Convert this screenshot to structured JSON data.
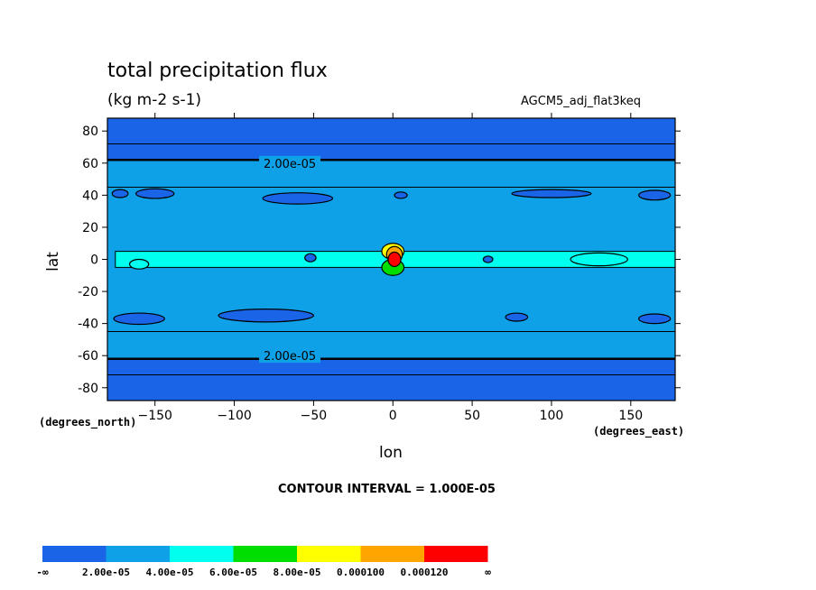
{
  "chart_data": {
    "type": "heatmap",
    "title": "total precipitation flux",
    "units": "(kg m-2 s-1)",
    "dataset": "AGCM5_adj_flat3keq",
    "xlabel": "lon",
    "ylabel": "lat",
    "x_units": "(degrees_east)",
    "y_units": "(degrees_north)",
    "xlim": [
      -180,
      178
    ],
    "ylim": [
      -88,
      88
    ],
    "x_ticks": [
      -150,
      -100,
      -50,
      0,
      50,
      100,
      150
    ],
    "y_ticks": [
      80,
      60,
      40,
      20,
      0,
      -20,
      -40,
      -60,
      -80
    ],
    "contour_interval_label": "CONTOUR INTERVAL = 1.000E-05",
    "contour_labels": [
      {
        "text": "2.00e-05",
        "lon": -65,
        "lat": 60
      },
      {
        "text": "2.00e-05",
        "lon": -65,
        "lat": -60
      }
    ],
    "colorbar": {
      "labels": [
        "-∞",
        "2.00e-05",
        "4.00e-05",
        "6.00e-05",
        "8.00e-05",
        "0.000100",
        "0.000120",
        "∞"
      ],
      "colors": [
        "#1a64e8",
        "#0ea1e8",
        "#00ffee",
        "#00dd00",
        "#ffff00",
        "#ffa500",
        "#ff0000"
      ]
    },
    "bands": [
      {
        "from": 62,
        "to": 88,
        "level": 0
      },
      {
        "from": 45,
        "to": 62,
        "level": 1
      },
      {
        "from": -45,
        "to": 45,
        "level": 1
      },
      {
        "from": -62,
        "to": -45,
        "level": 1
      },
      {
        "from": -88,
        "to": -62,
        "level": 0
      }
    ],
    "features": [
      {
        "kind": "strip",
        "level": 2,
        "lon_from": -175,
        "lon_to": 178,
        "lat_from": -5,
        "lat_to": 5
      },
      {
        "kind": "blob",
        "level": 0,
        "lon": -172,
        "lat": 41,
        "rlon": 5,
        "rlat": 2.5
      },
      {
        "kind": "blob",
        "level": 0,
        "lon": -150,
        "lat": 41,
        "rlon": 12,
        "rlat": 3
      },
      {
        "kind": "blob",
        "level": 0,
        "lon": -60,
        "lat": 38,
        "rlon": 22,
        "rlat": 3.5
      },
      {
        "kind": "blob",
        "level": 0,
        "lon": 5,
        "lat": 40,
        "rlon": 4,
        "rlat": 2
      },
      {
        "kind": "blob",
        "level": 0,
        "lon": 100,
        "lat": 41,
        "rlon": 25,
        "rlat": 2.5
      },
      {
        "kind": "blob",
        "level": 0,
        "lon": 165,
        "lat": 40,
        "rlon": 10,
        "rlat": 3
      },
      {
        "kind": "blob",
        "level": 0,
        "lon": -160,
        "lat": -37,
        "rlon": 16,
        "rlat": 3.5
      },
      {
        "kind": "blob",
        "level": 0,
        "lon": -80,
        "lat": -35,
        "rlon": 30,
        "rlat": 4
      },
      {
        "kind": "blob",
        "level": 0,
        "lon": 78,
        "lat": -36,
        "rlon": 7,
        "rlat": 2.5
      },
      {
        "kind": "blob",
        "level": 0,
        "lon": 165,
        "lat": -37,
        "rlon": 10,
        "rlat": 3
      },
      {
        "kind": "blob",
        "level": 0,
        "lon": -52,
        "lat": 1,
        "rlon": 3.5,
        "rlat": 2.5
      },
      {
        "kind": "blob",
        "level": 0,
        "lon": 60,
        "lat": 0,
        "rlon": 3,
        "rlat": 2
      },
      {
        "kind": "blob",
        "level": 2,
        "lon": -160,
        "lat": -3,
        "rlon": 6,
        "rlat": 3
      },
      {
        "kind": "blob",
        "level": 2,
        "lon": 130,
        "lat": 0,
        "rlon": 18,
        "rlat": 4
      },
      {
        "kind": "blob",
        "level": 3,
        "lon": 0,
        "lat": -5,
        "rlon": 7,
        "rlat": 5
      },
      {
        "kind": "blob",
        "level": 4,
        "lon": 0,
        "lat": 5,
        "rlon": 7,
        "rlat": 5
      },
      {
        "kind": "blob",
        "level": 5,
        "lon": 1,
        "lat": 3,
        "rlon": 5,
        "rlat": 5
      },
      {
        "kind": "blob",
        "level": 6,
        "lon": 1,
        "lat": 0,
        "rlon": 4,
        "rlat": 4.5
      }
    ],
    "grid": false,
    "legend_position": "bottom"
  }
}
